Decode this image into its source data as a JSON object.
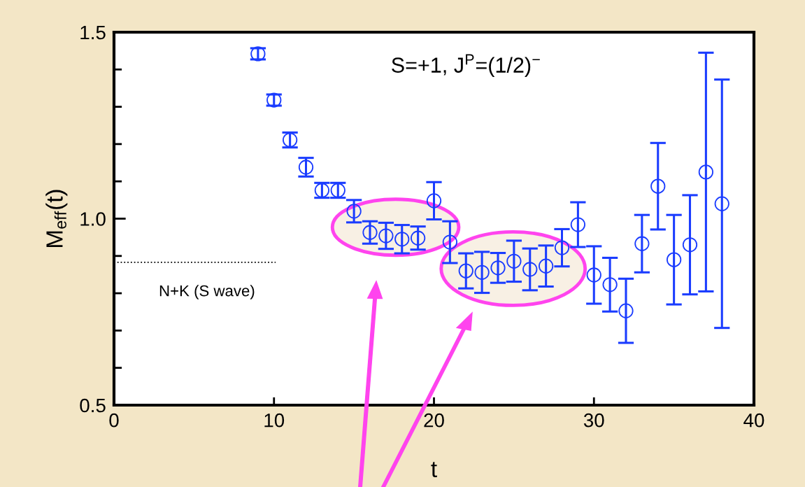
{
  "chart_data": {
    "type": "scatter",
    "xlabel": "t",
    "ylabel": "M$_{eff}$(t)",
    "x": [
      9,
      10,
      11,
      12,
      13,
      14,
      15,
      16,
      17,
      18,
      19,
      20,
      21,
      22,
      23,
      24,
      25,
      26,
      27,
      28,
      29,
      30,
      31,
      32,
      33,
      34,
      35,
      36,
      37,
      38
    ],
    "series": [
      {
        "color": "#1a3cff",
        "values": [
          1.442,
          1.318,
          1.211,
          1.138,
          1.076,
          1.076,
          1.02,
          0.963,
          0.954,
          0.945,
          0.948,
          1.048,
          0.937,
          0.86,
          0.856,
          0.868,
          0.886,
          0.864,
          0.873,
          0.922,
          0.984,
          0.849,
          0.823,
          0.753,
          0.933,
          1.087,
          0.89,
          0.93,
          1.125,
          1.04
        ],
        "errors": [
          0.015,
          0.015,
          0.02,
          0.025,
          0.02,
          0.02,
          0.03,
          0.03,
          0.035,
          0.038,
          0.031,
          0.05,
          0.056,
          0.047,
          0.055,
          0.04,
          0.055,
          0.056,
          0.055,
          0.05,
          0.06,
          0.077,
          0.072,
          0.086,
          0.077,
          0.116,
          0.12,
          0.133,
          0.32,
          0.333
        ]
      }
    ],
    "marker": "circle",
    "xlim": [
      0,
      40
    ],
    "xticks": [
      0,
      10,
      20,
      30,
      40
    ],
    "ylim": [
      0.5,
      1.5
    ],
    "yticks": [
      {
        "value": 0.5,
        "label": "0.5"
      },
      {
        "value": 0.6,
        "label": null
      },
      {
        "value": 0.7,
        "label": null
      },
      {
        "value": 0.8,
        "label": null
      },
      {
        "value": 0.9,
        "label": null
      },
      {
        "value": 1.0,
        "label": "1.0"
      },
      {
        "value": 1.1,
        "label": null
      },
      {
        "value": 1.2,
        "label": null
      },
      {
        "value": 1.3,
        "label": null
      },
      {
        "value": 1.4,
        "label": null
      },
      {
        "value": 1.5,
        "label": "1.5"
      }
    ],
    "ref_lines": [
      {
        "axis": "y",
        "value": 0.883,
        "label": "N+K (S wave)",
        "color": "#000000",
        "line_style": "dotted"
      }
    ],
    "annotations": [
      "S=+1, J$^{P}$=(1/2)$^{−}$"
    ],
    "grid": false
  }
}
